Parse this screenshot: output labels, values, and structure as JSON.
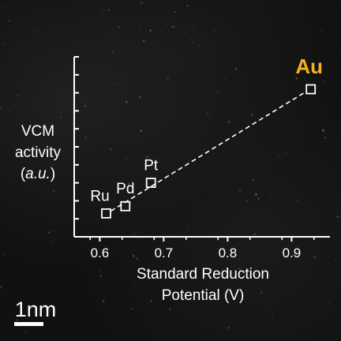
{
  "chart_data": {
    "type": "scatter",
    "xlabel": [
      "Standard Reduction",
      "Potential (V)"
    ],
    "ylabel": [
      "VCM",
      "activity",
      "(a.u.)"
    ],
    "xlim": [
      0.56,
      0.96
    ],
    "ylim": [
      0,
      10
    ],
    "x_ticks": [
      0.6,
      0.7,
      0.8,
      0.9
    ],
    "y_tick_count": 10,
    "grid": false,
    "trend_line": "dashed",
    "points": [
      {
        "label": "Ru",
        "x": 0.61,
        "y": 1.3,
        "highlight": false
      },
      {
        "label": "Pd",
        "x": 0.64,
        "y": 1.7,
        "highlight": false
      },
      {
        "label": "Pt",
        "x": 0.68,
        "y": 3.0,
        "highlight": false
      },
      {
        "label": "Au",
        "x": 0.93,
        "y": 8.2,
        "highlight": true
      }
    ],
    "colors": {
      "axis": "#ffffff",
      "marker": "#ffffff",
      "highlight": "#f2b31c"
    }
  },
  "scale_bar": {
    "label": "1nm"
  }
}
